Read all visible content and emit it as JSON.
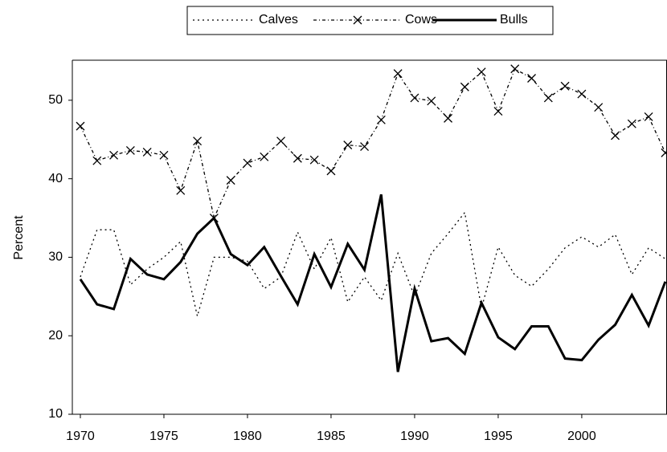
{
  "chart_data": {
    "type": "line",
    "y_label": "Percent",
    "x": [
      1970,
      1971,
      1972,
      1973,
      1974,
      1975,
      1976,
      1977,
      1978,
      1979,
      1980,
      1981,
      1982,
      1983,
      1984,
      1985,
      1986,
      1987,
      1988,
      1989,
      1990,
      1991,
      1992,
      1993,
      1994,
      1995,
      1996,
      1997,
      1998,
      1999,
      2000,
      2001,
      2002,
      2003,
      2004,
      2005
    ],
    "series": [
      {
        "name": "Calves",
        "color": "#000000",
        "dash": "2,4",
        "width": 1.3,
        "marker": null,
        "values": [
          27.5,
          33.5,
          33.5,
          26.5,
          28.5,
          30,
          32,
          22.5,
          30,
          30,
          29.5,
          26,
          27.5,
          33.2,
          28.5,
          32.5,
          24.3,
          27.5,
          24.5,
          30.5,
          25,
          30.5,
          33,
          35.7,
          23.5,
          31.3,
          27.7,
          26.3,
          28.5,
          31.2,
          32.6,
          31.3,
          32.9,
          27.8,
          31.2,
          29.8
        ]
      },
      {
        "name": "Cows",
        "color": "#000000",
        "dash": "4,3,1,3",
        "width": 1.3,
        "marker": "x",
        "values": [
          46.7,
          42.3,
          43,
          43.6,
          43.4,
          43,
          38.5,
          44.8,
          35,
          39.8,
          42,
          42.8,
          44.8,
          42.6,
          42.4,
          41,
          44.3,
          44.1,
          47.5,
          53.4,
          50.3,
          49.9,
          47.7,
          51.7,
          53.6,
          48.6,
          54,
          52.8,
          50.3,
          51.8,
          50.8,
          49.1,
          45.5,
          47,
          47.9,
          43.3
        ]
      },
      {
        "name": "Bulls",
        "color": "#000000",
        "dash": null,
        "width": 3,
        "marker": null,
        "values": [
          27.2,
          24,
          23.4,
          29.8,
          27.8,
          27.2,
          29.4,
          33,
          35,
          30.4,
          29,
          31.3,
          27.6,
          24,
          30.4,
          26.2,
          31.7,
          28.4,
          38,
          15.4,
          26,
          19.3,
          19.7,
          17.7,
          24.2,
          19.8,
          18.3,
          21.2,
          21.2,
          17.1,
          16.9,
          19.5,
          21.4,
          25.2,
          21.3,
          26.9
        ]
      }
    ],
    "xlim": [
      1969.52,
      2005.1
    ],
    "xticks": [
      1970,
      1975,
      1980,
      1985,
      1990,
      1995,
      2000
    ],
    "ylim": [
      10,
      55.1
    ],
    "yticks": [
      10,
      20,
      30,
      40,
      50
    ],
    "legend": "top"
  }
}
